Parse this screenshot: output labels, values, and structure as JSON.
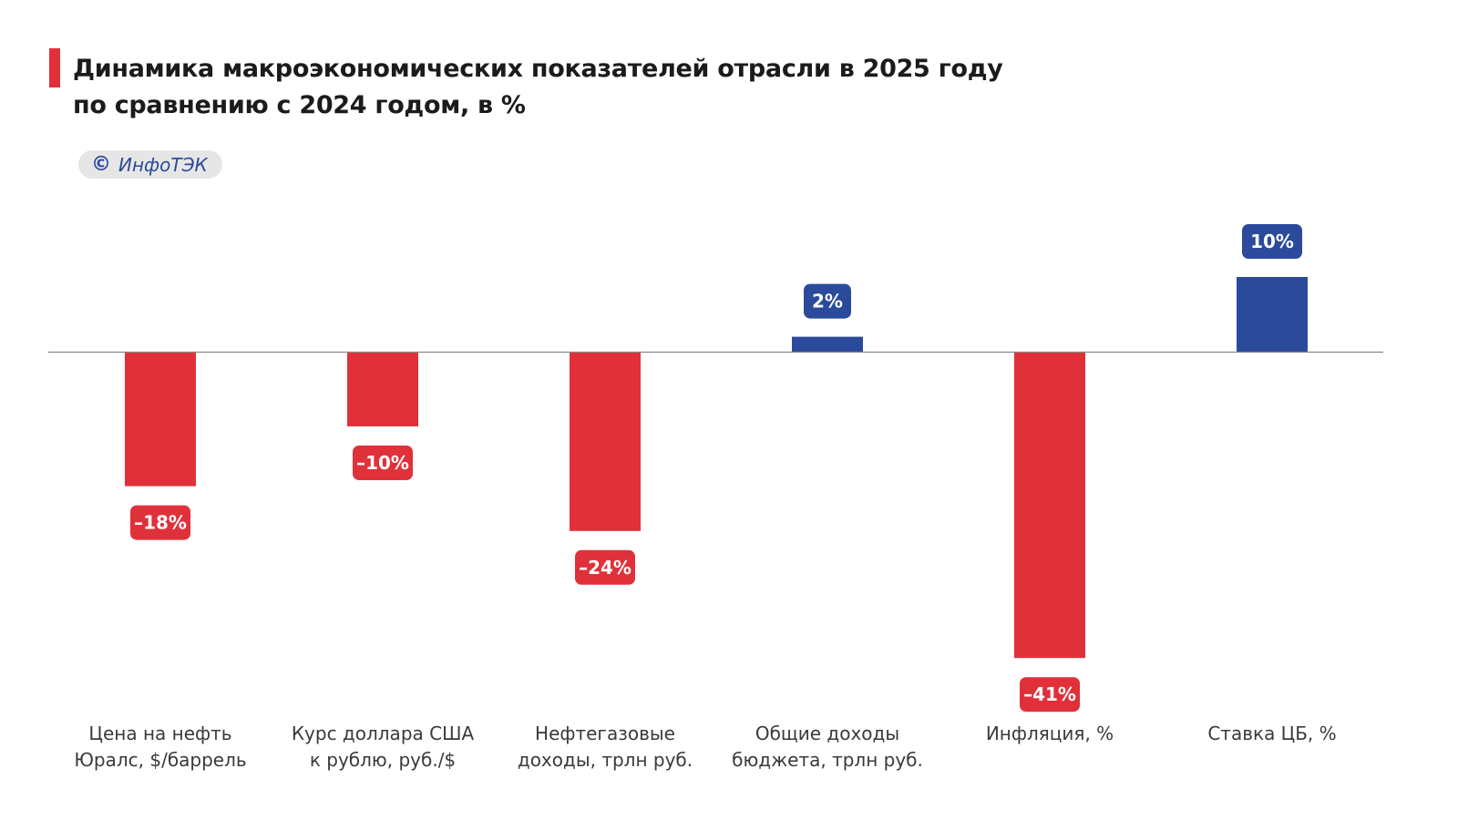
{
  "header": {
    "title_line1": "Динамика макроэкономических показателей отрасли в 2025 году",
    "title_line2": "по сравнению с 2024 годом, в %"
  },
  "credit": {
    "icon": "copyright-icon",
    "symbol": "©",
    "text": "ИнфоТЭК"
  },
  "colors": {
    "negative": "#e0313b",
    "positive": "#2b4a9b",
    "axis": "#8a8a8a",
    "accent": "#e0313b"
  },
  "chart_data": {
    "type": "bar",
    "title": "Динамика макроэкономических показателей отрасли в 2025 году по сравнению с 2024 годом, в %",
    "xlabel": "",
    "ylabel": "",
    "ylim": [
      -45,
      15
    ],
    "grid": false,
    "categories": [
      [
        "Цена на нефть",
        "Юралс, $/баррель"
      ],
      [
        "Курс доллара США",
        "к рублю, руб./$"
      ],
      [
        "Нефтегазовые",
        "доходы, трлн руб."
      ],
      [
        "Общие доходы",
        "бюджета, трлн руб."
      ],
      [
        "Инфляция, %"
      ],
      [
        "Ставка ЦБ, %"
      ]
    ],
    "values": [
      -18,
      -10,
      -24,
      2,
      -41,
      10
    ],
    "value_labels": [
      "–18%",
      "–10%",
      "–24%",
      "2%",
      "–41%",
      "10%"
    ]
  }
}
